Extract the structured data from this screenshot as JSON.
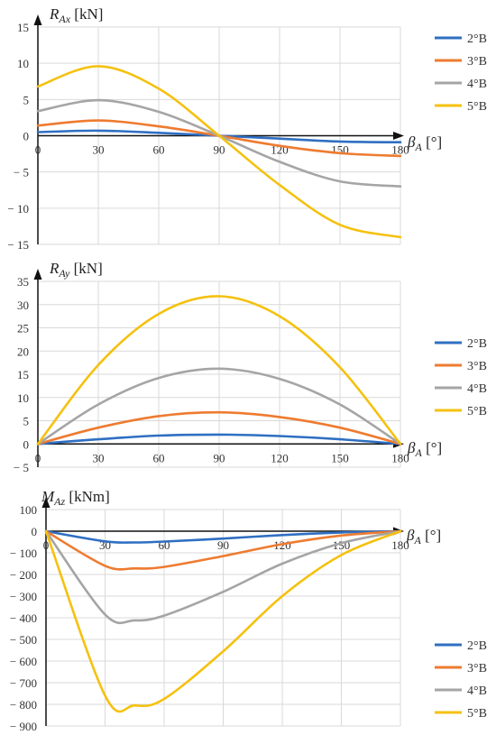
{
  "series_colors": {
    "2°B": "#2f6fc2",
    "3°B": "#ee7b30",
    "4°B": "#a5a5a5",
    "5°B": "#f5c10f"
  },
  "chart_data": [
    {
      "type": "line",
      "id": "rax",
      "ylabel_main": "R",
      "ylabel_sub": "Ax",
      "ylabel_unit": " [kN]",
      "xlabel_main": "β",
      "xlabel_sub": "A",
      "xlabel_unit": " [°]",
      "xlim": [
        0,
        180
      ],
      "ylim": [
        -15,
        15
      ],
      "xticks": [
        0,
        30,
        60,
        90,
        120,
        150,
        180
      ],
      "yticks": [
        15,
        10,
        5,
        0,
        -5,
        -10,
        -15
      ],
      "ytick_labels": [
        "15",
        "10",
        "5",
        "0",
        "− 5",
        "− 10",
        "− 15"
      ],
      "grid": true,
      "legend": "right",
      "x": [
        0,
        30,
        60,
        90,
        120,
        150,
        180
      ],
      "series": [
        {
          "name": "2°B",
          "values": [
            0.5,
            0.7,
            0.4,
            0,
            -0.4,
            -0.8,
            -0.9
          ]
        },
        {
          "name": "3°B",
          "values": [
            1.4,
            2.1,
            1.3,
            0,
            -1.4,
            -2.4,
            -2.8
          ]
        },
        {
          "name": "4°B",
          "values": [
            3.4,
            4.9,
            3.3,
            0,
            -3.6,
            -6.3,
            -7.0
          ]
        },
        {
          "name": "5°B",
          "values": [
            6.8,
            9.6,
            6.5,
            0,
            -6.8,
            -12.3,
            -14.0
          ]
        }
      ]
    },
    {
      "type": "line",
      "id": "ray",
      "ylabel_main": "R",
      "ylabel_sub": "Ay",
      "ylabel_unit": " [kN]",
      "xlabel_main": "β",
      "xlabel_sub": "A",
      "xlabel_unit": " [°]",
      "xlim": [
        0,
        180
      ],
      "ylim": [
        -5,
        35
      ],
      "xticks": [
        0,
        30,
        60,
        90,
        120,
        150,
        180
      ],
      "yticks": [
        35,
        30,
        25,
        20,
        15,
        10,
        5,
        0,
        -5
      ],
      "ytick_labels": [
        "35",
        "30",
        "25",
        "20",
        "15",
        "10",
        "5",
        "0",
        "− 5"
      ],
      "grid": true,
      "legend": "right",
      "x": [
        0,
        30,
        60,
        90,
        120,
        150,
        180
      ],
      "series": [
        {
          "name": "2°B",
          "values": [
            0,
            1.0,
            1.8,
            2.0,
            1.7,
            1.0,
            0
          ]
        },
        {
          "name": "3°B",
          "values": [
            0,
            3.5,
            6.0,
            6.8,
            5.8,
            3.5,
            0
          ]
        },
        {
          "name": "4°B",
          "values": [
            0,
            8.5,
            14.2,
            16.2,
            14.0,
            8.5,
            0
          ]
        },
        {
          "name": "5°B",
          "values": [
            0,
            17.0,
            28.0,
            31.8,
            27.5,
            16.5,
            0
          ]
        }
      ]
    },
    {
      "type": "line",
      "id": "maz",
      "ylabel_main": "M",
      "ylabel_sub": "Az",
      "ylabel_unit": " [kNm]",
      "xlabel_main": "β",
      "xlabel_sub": "A",
      "xlabel_unit": " [°]",
      "xlim": [
        0,
        180
      ],
      "ylim": [
        -900,
        100
      ],
      "xticks": [
        0,
        30,
        60,
        90,
        120,
        150,
        180
      ],
      "yticks": [
        100,
        0,
        -100,
        -200,
        -300,
        -400,
        -500,
        -600,
        -700,
        -800,
        -900
      ],
      "ytick_labels": [
        "100",
        "0",
        "− 100",
        "− 200",
        "− 300",
        "− 400",
        "− 500",
        "− 600",
        "− 700",
        "− 800",
        "− 900"
      ],
      "grid": true,
      "legend": "right",
      "x": [
        0,
        30,
        45,
        60,
        90,
        120,
        150,
        180
      ],
      "series": [
        {
          "name": "2°B",
          "values": [
            0,
            -47,
            -52,
            -48,
            -34,
            -18,
            -6,
            0
          ]
        },
        {
          "name": "3°B",
          "values": [
            0,
            -160,
            -172,
            -165,
            -115,
            -60,
            -20,
            0
          ]
        },
        {
          "name": "4°B",
          "values": [
            0,
            -385,
            -412,
            -390,
            -280,
            -150,
            -55,
            0
          ]
        },
        {
          "name": "5°B",
          "values": [
            0,
            -760,
            -805,
            -775,
            -555,
            -300,
            -110,
            0
          ]
        }
      ]
    }
  ]
}
